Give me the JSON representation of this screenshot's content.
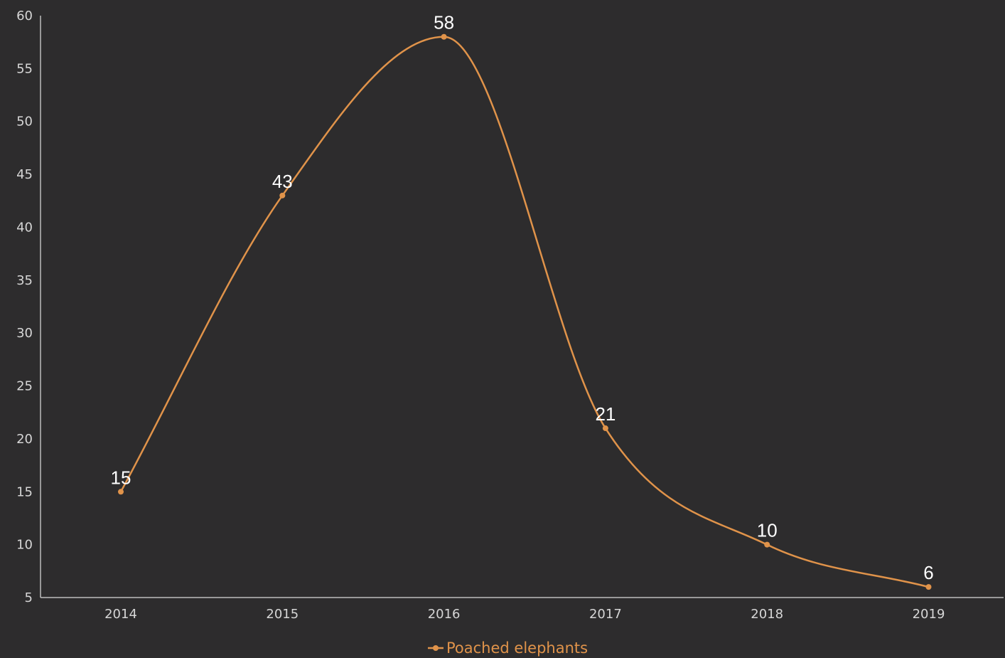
{
  "chart_data": {
    "type": "line",
    "title": "",
    "xlabel": "",
    "ylabel": "",
    "categories": [
      "2014",
      "2015",
      "2016",
      "2017",
      "2018",
      "2019"
    ],
    "series": [
      {
        "name": "Poached elephants",
        "values": [
          15,
          43,
          58,
          21,
          10,
          6
        ],
        "color": "#e0934a"
      }
    ],
    "ylim": [
      5,
      60
    ],
    "yticks": [
      "5",
      "10",
      "15",
      "20",
      "25",
      "30",
      "35",
      "40",
      "45",
      "50",
      "55",
      "60"
    ],
    "data_labels": [
      "15",
      "43",
      "58",
      "21",
      "10",
      "6"
    ],
    "grid": false,
    "smooth": true,
    "legend_position": "bottom-center",
    "colors": {
      "background": "#2d2c2d",
      "axis": "#bdbdbd",
      "tick_text": "#d6d6d6",
      "data_label": "#ffffff"
    }
  }
}
